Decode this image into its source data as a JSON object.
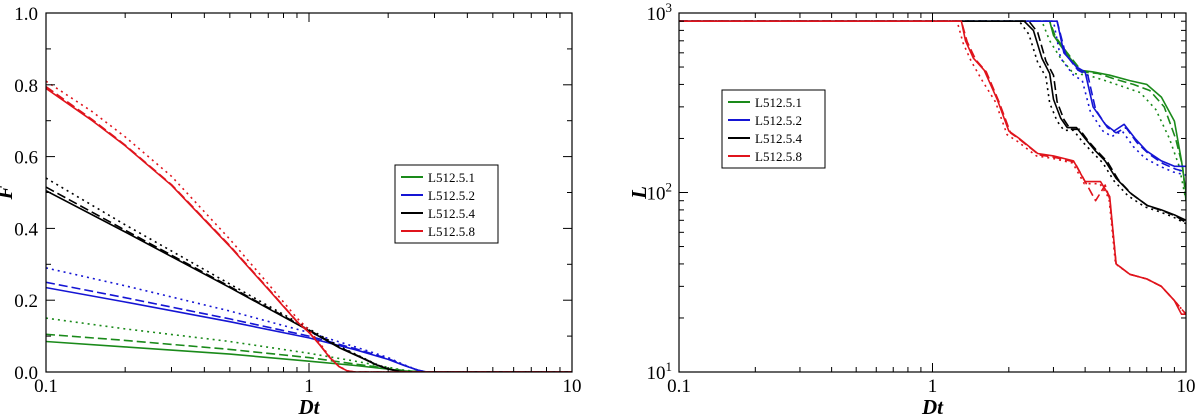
{
  "chart_data": [
    {
      "type": "line",
      "title": "",
      "xlabel": "Dt",
      "ylabel": "F",
      "xscale": "log",
      "yscale": "linear",
      "xlim": [
        0.1,
        10
      ],
      "ylim": [
        0,
        1
      ],
      "x_ticks": [
        0.1,
        1,
        10
      ],
      "x_tick_labels": [
        "0.1",
        "1",
        "10"
      ],
      "y_ticks": [
        0,
        0.2,
        0.4,
        0.6,
        0.8,
        1.0
      ],
      "y_tick_labels": [
        "0.0",
        "0.2",
        "0.4",
        "0.6",
        "0.8",
        "1.0"
      ],
      "grid": false,
      "legend_position": "center-right",
      "legend": [
        "L512.5.1",
        "L512.5.2",
        "L512.5.4",
        "L512.5.8"
      ],
      "series": [
        {
          "name": "L512.5.1",
          "color": "#1a8a1a",
          "style": "solid",
          "x": [
            0.1,
            0.2,
            0.5,
            1,
            1.5,
            2,
            2.3,
            2.6,
            3,
            10
          ],
          "y": [
            0.085,
            0.07,
            0.05,
            0.03,
            0.018,
            0.008,
            0.003,
            0.001,
            0,
            0
          ]
        },
        {
          "name": "L512.5.1",
          "color": "#1a8a1a",
          "style": "dashed",
          "x": [
            0.1,
            0.2,
            0.5,
            1,
            1.5,
            2,
            2.3,
            2.6,
            3,
            10
          ],
          "y": [
            0.105,
            0.088,
            0.063,
            0.04,
            0.022,
            0.01,
            0.004,
            0.001,
            0,
            0
          ]
        },
        {
          "name": "L512.5.1",
          "color": "#1a8a1a",
          "style": "dotted",
          "x": [
            0.1,
            0.2,
            0.5,
            1,
            1.5,
            2,
            2.3,
            2.6,
            3,
            10
          ],
          "y": [
            0.15,
            0.12,
            0.085,
            0.052,
            0.03,
            0.013,
            0.005,
            0.001,
            0,
            0
          ]
        },
        {
          "name": "L512.5.2",
          "color": "#1515d4",
          "style": "solid",
          "x": [
            0.1,
            0.2,
            0.5,
            1,
            1.5,
            2,
            2.3,
            2.6,
            2.8,
            10
          ],
          "y": [
            0.235,
            0.195,
            0.14,
            0.095,
            0.062,
            0.035,
            0.018,
            0.005,
            0,
            0
          ]
        },
        {
          "name": "L512.5.2",
          "color": "#1515d4",
          "style": "dashed",
          "x": [
            0.1,
            0.2,
            0.5,
            1,
            1.5,
            2,
            2.3,
            2.6,
            2.8,
            10
          ],
          "y": [
            0.25,
            0.207,
            0.148,
            0.1,
            0.065,
            0.037,
            0.019,
            0.005,
            0,
            0
          ]
        },
        {
          "name": "L512.5.2",
          "color": "#1515d4",
          "style": "dotted",
          "x": [
            0.1,
            0.2,
            0.5,
            1,
            1.5,
            2,
            2.3,
            2.6,
            2.8,
            10
          ],
          "y": [
            0.29,
            0.24,
            0.17,
            0.11,
            0.07,
            0.04,
            0.02,
            0.005,
            0,
            0
          ]
        },
        {
          "name": "L512.5.4",
          "color": "#000000",
          "style": "solid",
          "x": [
            0.1,
            0.2,
            0.5,
            1,
            1.3,
            1.6,
            1.8,
            2,
            2.2,
            2.4,
            10
          ],
          "y": [
            0.505,
            0.39,
            0.235,
            0.115,
            0.068,
            0.038,
            0.02,
            0.008,
            0.002,
            0,
            0
          ]
        },
        {
          "name": "L512.5.4",
          "color": "#000000",
          "style": "dashed",
          "x": [
            0.1,
            0.2,
            0.5,
            1,
            1.3,
            1.6,
            1.8,
            2,
            2.2,
            2.4,
            10
          ],
          "y": [
            0.515,
            0.395,
            0.238,
            0.117,
            0.07,
            0.039,
            0.021,
            0.008,
            0.002,
            0,
            0
          ]
        },
        {
          "name": "L512.5.4",
          "color": "#000000",
          "style": "dotted",
          "x": [
            0.1,
            0.2,
            0.5,
            1,
            1.3,
            1.6,
            1.8,
            2,
            2.2,
            2.4,
            10
          ],
          "y": [
            0.54,
            0.41,
            0.245,
            0.12,
            0.072,
            0.04,
            0.022,
            0.009,
            0.002,
            0,
            0
          ]
        },
        {
          "name": "L512.5.8",
          "color": "#e0141c",
          "style": "solid",
          "x": [
            0.1,
            0.15,
            0.2,
            0.3,
            0.5,
            0.7,
            0.9,
            1,
            1.1,
            1.2,
            1.3,
            1.4,
            1.5,
            10
          ],
          "y": [
            0.79,
            0.7,
            0.63,
            0.52,
            0.35,
            0.23,
            0.14,
            0.11,
            0.075,
            0.04,
            0.015,
            0.003,
            0,
            0
          ]
        },
        {
          "name": "L512.5.8",
          "color": "#e0141c",
          "style": "dashed",
          "x": [
            0.1,
            0.15,
            0.2,
            0.3,
            0.5,
            0.7,
            0.9,
            1,
            1.1,
            1.2,
            1.3,
            1.4,
            1.5,
            10
          ],
          "y": [
            0.795,
            0.703,
            0.632,
            0.522,
            0.352,
            0.232,
            0.141,
            0.111,
            0.076,
            0.04,
            0.015,
            0.003,
            0,
            0
          ]
        },
        {
          "name": "L512.5.8",
          "color": "#e0141c",
          "style": "dotted",
          "x": [
            0.1,
            0.15,
            0.2,
            0.3,
            0.5,
            0.7,
            0.9,
            1,
            1.1,
            1.2,
            1.3,
            1.4,
            1.5,
            10
          ],
          "y": [
            0.81,
            0.725,
            0.655,
            0.545,
            0.37,
            0.245,
            0.15,
            0.117,
            0.08,
            0.042,
            0.016,
            0.003,
            0,
            0
          ]
        }
      ]
    },
    {
      "type": "line",
      "title": "",
      "xlabel": "Dt",
      "ylabel": "L",
      "xscale": "log",
      "yscale": "log",
      "xlim": [
        0.1,
        10
      ],
      "ylim": [
        10,
        1000
      ],
      "x_ticks": [
        0.1,
        1,
        10
      ],
      "x_tick_labels": [
        "0.1",
        "1",
        "10"
      ],
      "y_ticks": [
        10,
        100,
        1000
      ],
      "y_tick_labels": [
        "10",
        "10",
        "10"
      ],
      "y_tick_exponents": [
        "1",
        "2",
        "3"
      ],
      "grid": false,
      "legend_position": "upper-left",
      "legend": [
        "L512.5.1",
        "L512.5.2",
        "L512.5.4",
        "L512.5.8"
      ],
      "series": [
        {
          "name": "L512.5.1",
          "color": "#1a8a1a",
          "style": "solid",
          "x": [
            0.1,
            2.9,
            3.0,
            3.3,
            3.8,
            4.3,
            5.0,
            6.0,
            7.0,
            8.0,
            9.0,
            9.6,
            10
          ],
          "y": [
            900,
            900,
            750,
            620,
            480,
            470,
            450,
            420,
            400,
            340,
            250,
            150,
            100
          ]
        },
        {
          "name": "L512.5.1",
          "color": "#1a8a1a",
          "style": "dashed",
          "x": [
            0.1,
            2.9,
            3.05,
            3.4,
            3.9,
            4.5,
            5.2,
            6.2,
            7.2,
            8.2,
            9.1,
            9.7,
            10
          ],
          "y": [
            900,
            900,
            740,
            600,
            470,
            460,
            430,
            400,
            370,
            300,
            200,
            140,
            90
          ]
        },
        {
          "name": "L512.5.1",
          "color": "#1a8a1a",
          "style": "dotted",
          "x": [
            0.1,
            2.7,
            2.9,
            3.2,
            3.6,
            4.1,
            4.8,
            5.6,
            6.6,
            7.6,
            8.6,
            9.4,
            10
          ],
          "y": [
            900,
            900,
            700,
            560,
            460,
            450,
            420,
            390,
            360,
            290,
            200,
            140,
            90
          ]
        },
        {
          "name": "L512.5.2",
          "color": "#1515d4",
          "style": "solid",
          "x": [
            0.1,
            3.1,
            3.3,
            3.7,
            4.0,
            4.3,
            4.8,
            5.2,
            5.7,
            6.3,
            7.0,
            8.0,
            9.0,
            10
          ],
          "y": [
            900,
            900,
            600,
            500,
            470,
            300,
            240,
            220,
            240,
            200,
            170,
            150,
            140,
            140
          ]
        },
        {
          "name": "L512.5.2",
          "color": "#1515d4",
          "style": "dashed",
          "x": [
            0.1,
            3.1,
            3.35,
            3.75,
            4.1,
            4.4,
            4.9,
            5.3,
            5.8,
            6.4,
            7.1,
            8.1,
            9.1,
            10
          ],
          "y": [
            900,
            900,
            590,
            480,
            450,
            290,
            230,
            215,
            230,
            190,
            165,
            145,
            135,
            130
          ]
        },
        {
          "name": "L512.5.2",
          "color": "#1515d4",
          "style": "dotted",
          "x": [
            0.1,
            3.0,
            3.2,
            3.6,
            3.9,
            4.2,
            4.7,
            5.1,
            5.6,
            6.2,
            6.9,
            7.9,
            8.9,
            10
          ],
          "y": [
            900,
            900,
            560,
            450,
            420,
            280,
            220,
            205,
            220,
            180,
            155,
            140,
            130,
            125
          ]
        },
        {
          "name": "L512.5.4",
          "color": "#000000",
          "style": "solid",
          "x": [
            0.1,
            2.3,
            2.5,
            2.7,
            2.9,
            3.0,
            3.2,
            3.4,
            3.7,
            4.0,
            4.4,
            4.8,
            5.3,
            6.0,
            7.0,
            8.0,
            9.0,
            10
          ],
          "y": [
            900,
            900,
            800,
            560,
            460,
            330,
            260,
            230,
            230,
            200,
            170,
            150,
            120,
            100,
            85,
            80,
            75,
            70
          ]
        },
        {
          "name": "L512.5.4",
          "color": "#000000",
          "style": "dashed",
          "x": [
            0.1,
            2.4,
            2.6,
            2.8,
            3.0,
            3.1,
            3.3,
            3.5,
            3.8,
            4.1,
            4.5,
            4.9,
            5.4,
            6.1,
            7.1,
            8.1,
            9.1,
            10
          ],
          "y": [
            900,
            900,
            780,
            540,
            450,
            320,
            255,
            225,
            225,
            195,
            168,
            148,
            118,
            98,
            84,
            79,
            74,
            68
          ]
        },
        {
          "name": "L512.5.4",
          "color": "#000000",
          "style": "dotted",
          "x": [
            0.1,
            2.2,
            2.4,
            2.6,
            2.8,
            2.9,
            3.1,
            3.3,
            3.6,
            3.9,
            4.3,
            4.7,
            5.2,
            5.9,
            6.9,
            7.9,
            8.9,
            10
          ],
          "y": [
            900,
            900,
            760,
            530,
            440,
            315,
            250,
            222,
            222,
            192,
            166,
            146,
            116,
            96,
            83,
            78,
            73,
            67
          ]
        },
        {
          "name": "L512.5.8",
          "color": "#e0141c",
          "style": "solid",
          "x": [
            0.1,
            1.3,
            1.35,
            1.45,
            1.6,
            1.8,
            2.0,
            2.2,
            2.6,
            3.0,
            3.6,
            4.0,
            4.6,
            5.0,
            5.3,
            6.0,
            7.0,
            8.0,
            9.0,
            9.6,
            10
          ],
          "y": [
            900,
            900,
            700,
            560,
            480,
            330,
            220,
            200,
            165,
            160,
            150,
            115,
            115,
            95,
            40,
            35,
            33,
            30,
            25,
            21,
            21
          ]
        },
        {
          "name": "L512.5.8",
          "color": "#e0141c",
          "style": "dashed",
          "x": [
            0.1,
            1.3,
            1.37,
            1.48,
            1.63,
            1.83,
            2.03,
            2.23,
            2.63,
            3.03,
            3.63,
            4.03,
            4.4,
            4.8,
            5.0,
            5.3,
            6.0,
            7.0,
            8.0,
            9.0,
            10
          ],
          "y": [
            900,
            900,
            690,
            550,
            470,
            320,
            215,
            195,
            162,
            157,
            148,
            113,
            90,
            110,
            92,
            40,
            35,
            33,
            30,
            25,
            21
          ]
        },
        {
          "name": "L512.5.8",
          "color": "#e0141c",
          "style": "dotted",
          "x": [
            0.1,
            1.25,
            1.32,
            1.42,
            1.57,
            1.77,
            1.97,
            2.17,
            2.57,
            2.97,
            3.57,
            3.97,
            4.57,
            4.97,
            5.27,
            6.0,
            7.0,
            8.0,
            9.0,
            10
          ],
          "y": [
            900,
            900,
            680,
            540,
            420,
            320,
            210,
            192,
            160,
            155,
            146,
            112,
            112,
            93,
            40,
            35,
            33,
            30,
            25,
            21
          ]
        }
      ]
    }
  ]
}
